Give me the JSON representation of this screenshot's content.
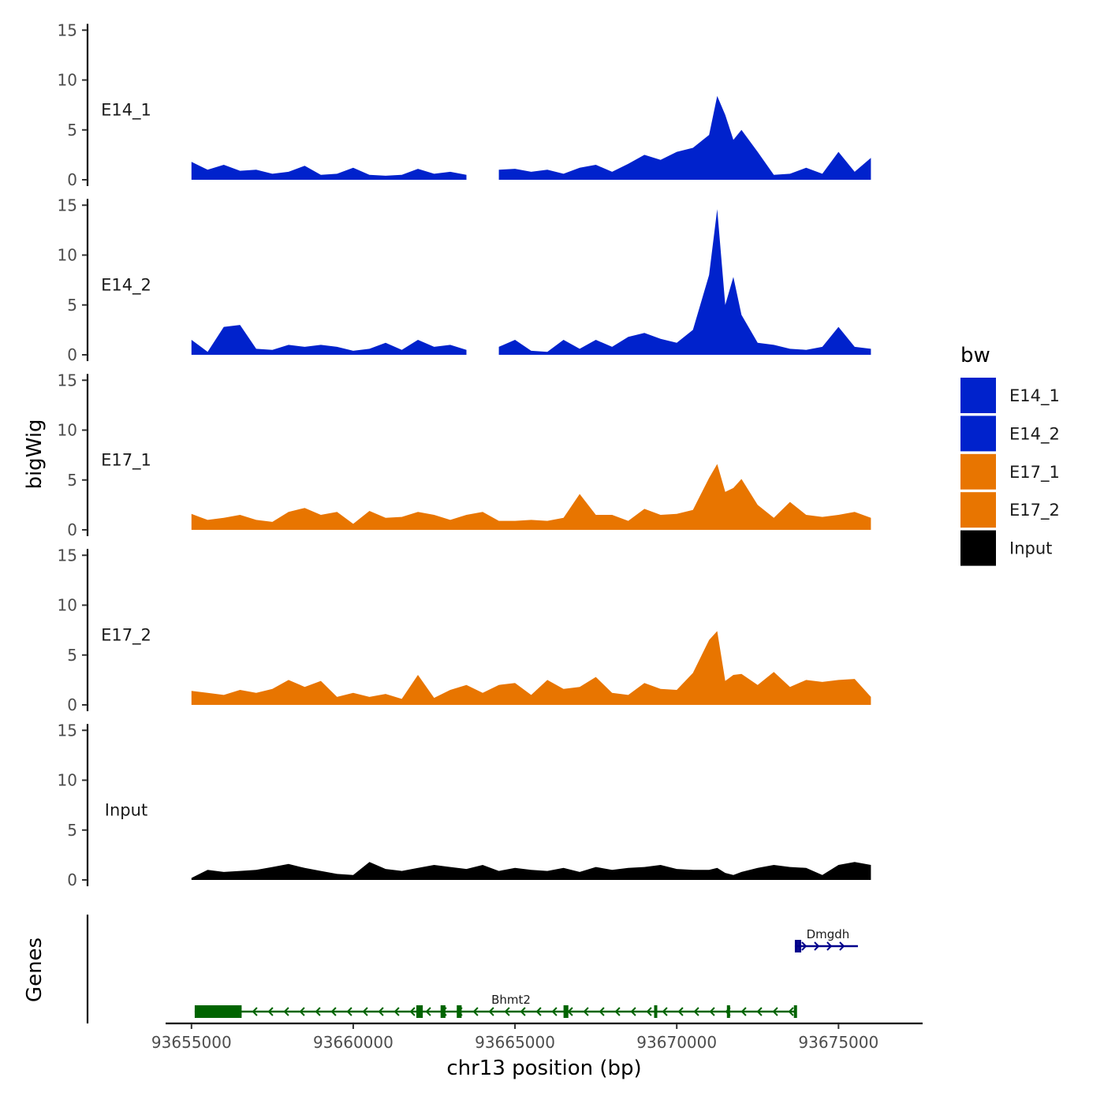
{
  "chart_data": {
    "type": "area",
    "xlabel": "chr13 position (bp)",
    "ylabel": "bigWig",
    "genes_ylabel": "Genes",
    "xlim": [
      93654200,
      93677600
    ],
    "ylim": [
      0,
      15
    ],
    "yticks": [
      "0",
      "5",
      "10",
      "15"
    ],
    "xticks": [
      {
        "value": 93655000,
        "label": "93655000"
      },
      {
        "value": 93660000,
        "label": "93660000"
      },
      {
        "value": 93665000,
        "label": "93665000"
      },
      {
        "value": 93670000,
        "label": "93670000"
      },
      {
        "value": 93675000,
        "label": "93675000"
      }
    ],
    "legend": {
      "title": "bw",
      "position": "right",
      "items": [
        {
          "label": "E14_1",
          "color": "#0022cc"
        },
        {
          "label": "E14_2",
          "color": "#0022cc"
        },
        {
          "label": "E17_1",
          "color": "#e87500"
        },
        {
          "label": "E17_2",
          "color": "#e87500"
        },
        {
          "label": "Input",
          "color": "#000000"
        }
      ]
    },
    "x": [
      93655000,
      93655500,
      93656000,
      93656500,
      93657000,
      93657500,
      93658000,
      93658500,
      93659000,
      93659500,
      93660000,
      93660500,
      93661000,
      93661500,
      93662000,
      93662500,
      93663000,
      93663500,
      93664000,
      93664500,
      93665000,
      93665500,
      93666000,
      93666500,
      93667000,
      93667500,
      93668000,
      93668500,
      93669000,
      93669500,
      93670000,
      93670500,
      93671000,
      93671250,
      93671500,
      93671750,
      93672000,
      93672500,
      93673000,
      93673500,
      93674000,
      93674500,
      93675000,
      93675500,
      93676000
    ],
    "series": [
      {
        "name": "E14_1",
        "color": "#0022cc",
        "values": [
          1.8,
          1.0,
          1.5,
          0.9,
          1.0,
          0.6,
          0.8,
          1.4,
          0.5,
          0.6,
          1.2,
          0.5,
          0.4,
          0.5,
          1.1,
          0.6,
          0.8,
          0.5,
          null,
          1.0,
          1.1,
          0.8,
          1.0,
          0.6,
          1.2,
          1.5,
          0.8,
          1.6,
          2.5,
          2.0,
          2.8,
          3.2,
          4.5,
          8.4,
          6.5,
          4.0,
          5.0,
          2.8,
          0.5,
          0.6,
          1.2,
          0.6,
          2.8,
          0.8,
          2.2
        ]
      },
      {
        "name": "E14_2",
        "color": "#0022cc",
        "values": [
          1.5,
          0.3,
          2.8,
          3.0,
          0.6,
          0.5,
          1.0,
          0.8,
          1.0,
          0.8,
          0.4,
          0.6,
          1.2,
          0.5,
          1.5,
          0.8,
          1.0,
          0.5,
          null,
          0.8,
          1.5,
          0.4,
          0.3,
          1.5,
          0.6,
          1.5,
          0.8,
          1.8,
          2.2,
          1.6,
          1.2,
          2.5,
          8.0,
          14.6,
          5.0,
          7.8,
          4.0,
          1.2,
          1.0,
          0.6,
          0.5,
          0.8,
          2.8,
          0.8,
          0.6
        ]
      },
      {
        "name": "E17_1",
        "color": "#e87500",
        "values": [
          1.6,
          1.0,
          1.2,
          1.5,
          1.0,
          0.8,
          1.8,
          2.2,
          1.5,
          1.8,
          0.6,
          1.9,
          1.2,
          1.3,
          1.8,
          1.5,
          1.0,
          1.5,
          1.8,
          0.9,
          0.9,
          1.0,
          0.9,
          1.2,
          3.6,
          1.5,
          1.5,
          0.9,
          2.1,
          1.5,
          1.6,
          2.0,
          5.2,
          6.6,
          3.8,
          4.2,
          5.1,
          2.5,
          1.2,
          2.8,
          1.5,
          1.3,
          1.5,
          1.8,
          1.2
        ]
      },
      {
        "name": "E17_2",
        "color": "#e87500",
        "values": [
          1.4,
          1.2,
          1.0,
          1.5,
          1.2,
          1.6,
          2.5,
          1.8,
          2.4,
          0.8,
          1.2,
          0.8,
          1.1,
          0.6,
          3.0,
          0.7,
          1.5,
          2.0,
          1.2,
          2.0,
          2.2,
          1.0,
          2.5,
          1.6,
          1.8,
          2.8,
          1.2,
          1.0,
          2.2,
          1.6,
          1.5,
          3.2,
          6.5,
          7.4,
          2.4,
          3.0,
          3.1,
          2.0,
          3.3,
          1.8,
          2.5,
          2.3,
          2.5,
          2.6,
          0.8
        ]
      },
      {
        "name": "Input",
        "color": "#000000",
        "values": [
          0.2,
          1.0,
          0.8,
          0.9,
          1.0,
          1.3,
          1.6,
          1.2,
          0.9,
          0.6,
          0.5,
          1.8,
          1.1,
          0.9,
          1.2,
          1.5,
          1.3,
          1.1,
          1.5,
          0.9,
          1.2,
          1.0,
          0.9,
          1.2,
          0.8,
          1.3,
          1.0,
          1.2,
          1.3,
          1.5,
          1.1,
          1.0,
          1.0,
          1.2,
          0.7,
          0.5,
          0.8,
          1.2,
          1.5,
          1.3,
          1.2,
          0.5,
          1.5,
          1.8,
          1.5
        ]
      }
    ],
    "genes": [
      {
        "name": "Bhmt2",
        "color": "#006400",
        "strand": "-",
        "start": 93655100,
        "end": 93673650,
        "exons": [
          [
            93655100,
            93656550
          ],
          [
            93661950,
            93662150
          ],
          [
            93662700,
            93662850
          ],
          [
            93663200,
            93663350
          ],
          [
            93666500,
            93666650
          ],
          [
            93669300,
            93669380
          ],
          [
            93671550,
            93671630
          ],
          [
            93673620,
            93673650
          ]
        ],
        "track": 2
      },
      {
        "name": "Dmgdh",
        "color": "#00008b",
        "strand": "+",
        "start": 93673650,
        "end": 93675600,
        "exons": [
          [
            93673650,
            93673700
          ],
          [
            93673750,
            93673800
          ]
        ],
        "track": 1
      }
    ]
  }
}
